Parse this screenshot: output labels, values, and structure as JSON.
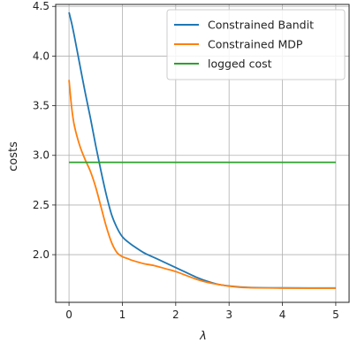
{
  "chart_data": {
    "type": "line",
    "title": "",
    "xlabel": "λ",
    "ylabel": "costs",
    "xlim": [
      -0.25,
      5.25
    ],
    "ylim": [
      1.52,
      4.52
    ],
    "xticks": [
      0,
      1,
      2,
      3,
      4,
      5
    ],
    "yticks": [
      2.0,
      2.5,
      3.0,
      3.5,
      4.0,
      4.5
    ],
    "grid": true,
    "legend_position": "upper-right",
    "series": [
      {
        "name": "Constrained Bandit",
        "color": "#1f77b4",
        "x": [
          0,
          0.05,
          0.1,
          0.2,
          0.3,
          0.4,
          0.5,
          0.6,
          0.7,
          0.8,
          0.9,
          1.0,
          1.1,
          1.2,
          1.4,
          1.6,
          1.8,
          2.0,
          2.2,
          2.4,
          2.6,
          2.8,
          3.0,
          3.2,
          3.5,
          4.0,
          4.5,
          5.0
        ],
        "y": [
          4.44,
          4.33,
          4.2,
          3.92,
          3.64,
          3.38,
          3.1,
          2.84,
          2.6,
          2.4,
          2.27,
          2.18,
          2.13,
          2.09,
          2.02,
          1.97,
          1.92,
          1.87,
          1.82,
          1.77,
          1.73,
          1.7,
          1.685,
          1.675,
          1.668,
          1.665,
          1.664,
          1.664
        ]
      },
      {
        "name": "Constrained MDP",
        "color": "#ff7f0e",
        "x": [
          0,
          0.05,
          0.1,
          0.2,
          0.3,
          0.4,
          0.5,
          0.6,
          0.7,
          0.8,
          0.9,
          1.0,
          1.1,
          1.2,
          1.4,
          1.6,
          1.8,
          2.0,
          2.2,
          2.4,
          2.6,
          2.8,
          3.0,
          3.2,
          3.5,
          4.0,
          4.5,
          5.0
        ],
        "y": [
          3.76,
          3.48,
          3.3,
          3.1,
          2.96,
          2.84,
          2.68,
          2.48,
          2.28,
          2.12,
          2.02,
          1.98,
          1.96,
          1.94,
          1.91,
          1.89,
          1.86,
          1.83,
          1.79,
          1.75,
          1.72,
          1.7,
          1.683,
          1.672,
          1.666,
          1.664,
          1.663,
          1.663
        ]
      },
      {
        "name": "logged cost",
        "color": "#2ca02c",
        "x": [
          0,
          5
        ],
        "y": [
          2.93,
          2.93
        ]
      }
    ]
  }
}
